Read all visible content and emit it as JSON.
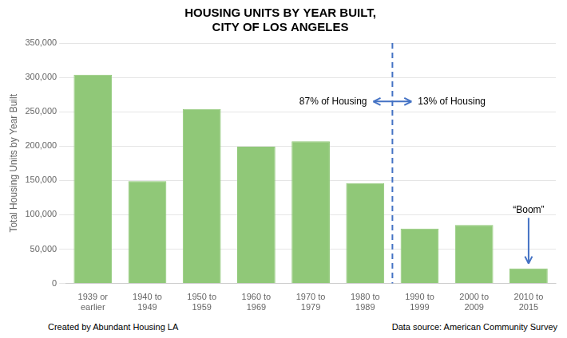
{
  "chart_data": {
    "type": "bar",
    "title": "HOUSING UNITS BY YEAR BUILT,\nCITY OF LOS ANGELES",
    "y_label": "Total Housing Units by Year Built",
    "categories": [
      "1939 or\nearlier",
      "1940 to\n1949",
      "1950 to\n1959",
      "1960 to\n1969",
      "1970 to\n1979",
      "1980 to\n1989",
      "1990 to\n1999",
      "2000 to\n2009",
      "2010 to\n2015"
    ],
    "values": [
      304000,
      149000,
      254000,
      199000,
      207000,
      146000,
      80000,
      85000,
      22000
    ],
    "color": "#90C878",
    "ylim": [
      0,
      350000
    ],
    "yticks": [
      0,
      {
        "value": 50000,
        "label": "50,000"
      },
      {
        "value": 100000,
        "label": "100,000"
      },
      {
        "value": 150000,
        "label": "150,000"
      },
      {
        "value": 200000,
        "label": "200,000"
      },
      {
        "value": 250000,
        "label": "250,000"
      },
      {
        "value": 300000,
        "label": "300,000"
      },
      {
        "value": 350000,
        "label": "350,000"
      }
    ],
    "grid": true,
    "annotations": [
      "87% of Housing",
      "13% of Housing",
      "“Boom”"
    ],
    "footer": [
      "Created by Abundant Housing LA",
      "Data source: American Community Survey"
    ]
  }
}
